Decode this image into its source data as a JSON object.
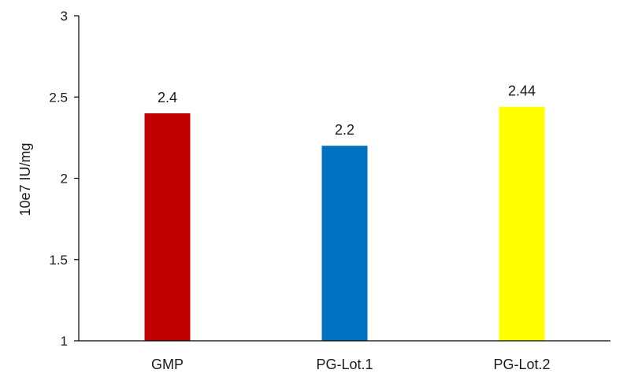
{
  "chart_data": {
    "type": "bar",
    "categories": [
      "GMP",
      "PG-Lot.1",
      "PG-Lot.2"
    ],
    "values": [
      2.4,
      2.2,
      2.44
    ],
    "data_labels": [
      "2.4",
      "2.2",
      "2.44"
    ],
    "colors": [
      "#c00000",
      "#0070c0",
      "#ffff00"
    ],
    "title": "",
    "xlabel": "",
    "ylabel": "10e7 IU/mg",
    "ylim": [
      1,
      3
    ],
    "yticks": [
      1,
      1.5,
      2,
      2.5,
      3
    ],
    "ytick_labels": [
      "1",
      "1.5",
      "2",
      "2.5",
      "3"
    ],
    "grid": false,
    "legend": "none"
  }
}
